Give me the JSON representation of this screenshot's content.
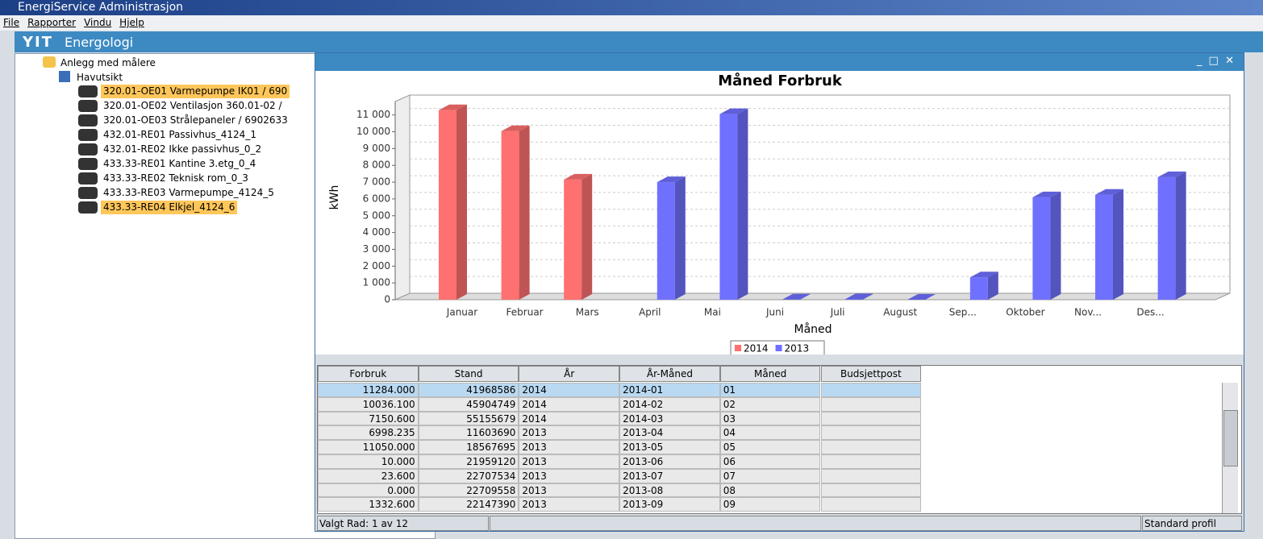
{
  "window_title": "EnergiService Administrasjon",
  "menu": [
    "File",
    "Rapporter",
    "Vindu",
    "Hjelp"
  ],
  "banner": {
    "logo": "YIT",
    "title": "Energologi"
  },
  "tree": {
    "root": "Anlegg med målere",
    "site": "Havutsikt",
    "items": [
      "320.01-OE01 Varmepumpe IK01 / 690",
      "320.01-OE02 Ventilasjon 360.01-02 /",
      "320.01-OE03 Strålepaneler / 6902633",
      "432.01-RE01 Passivhus_4124_1",
      "432.01-RE02 Ikke passivhus_0_2",
      "433.33-RE01 Kantine 3.etg_0_4",
      "433.33-RE02 Teknisk rom_0_3",
      "433.33-RE03 Varmepumpe_4124_5",
      "433.33-RE04 Elkjel_4124_6"
    ]
  },
  "chart_data": {
    "type": "bar",
    "title": "Måned  Forbruk",
    "x_label": "Måned",
    "y_label": "kWh",
    "categories": [
      "Januar",
      "Februar",
      "Mars",
      "April",
      "Mai",
      "Juni",
      "Juli",
      "August",
      "Sep...",
      "Oktober",
      "Nov...",
      "Des..."
    ],
    "series": [
      {
        "name": "2014",
        "color": "#ff7070",
        "values": [
          11284,
          10036.1,
          7150.6,
          null,
          null,
          null,
          null,
          null,
          null,
          null,
          null,
          null
        ]
      },
      {
        "name": "2013",
        "color": "#7070ff",
        "values": [
          null,
          null,
          null,
          6998.235,
          11050,
          10,
          23.6,
          0,
          1332.6,
          6100,
          6250,
          7300
        ]
      }
    ],
    "ylim": [
      0,
      11800
    ],
    "yticks": [
      0,
      {
        "value": 1000,
        "label": "1 000"
      },
      {
        "value": 2000,
        "label": "2 000"
      },
      {
        "value": 3000,
        "label": "3 000"
      },
      {
        "value": 4000,
        "label": "4 000"
      },
      {
        "value": 5000,
        "label": "5 000"
      },
      {
        "value": 6000,
        "label": "6 000"
      },
      {
        "value": 7000,
        "label": "7 000"
      },
      {
        "value": 8000,
        "label": "8 000"
      },
      {
        "value": 9000,
        "label": "9 000"
      },
      {
        "value": 10000,
        "label": "10 000"
      },
      {
        "value": 11000,
        "label": "11 000"
      }
    ],
    "grid": true
  },
  "table": {
    "headers": [
      "Forbruk",
      "Stand",
      "År",
      "År-Måned",
      "Måned",
      "Budsjettpost"
    ],
    "rows": [
      [
        "11284.000",
        "41968586",
        "2014",
        "2014-01",
        "01"
      ],
      [
        "10036.100",
        "45904749",
        "2014",
        "2014-02",
        "02"
      ],
      [
        "7150.600",
        "55155679",
        "2014",
        "2014-03",
        "03"
      ],
      [
        "6998.235",
        "11603690",
        "2013",
        "2013-04",
        "04"
      ],
      [
        "11050.000",
        "18567695",
        "2013",
        "2013-05",
        "05"
      ],
      [
        "10.000",
        "21959120",
        "2013",
        "2013-06",
        "06"
      ],
      [
        "23.600",
        "22707534",
        "2013",
        "2013-07",
        "07"
      ],
      [
        "0.000",
        "22709558",
        "2013",
        "2013-08",
        "08"
      ],
      [
        "1332.600",
        "22147390",
        "2013",
        "2013-09",
        "09"
      ]
    ]
  },
  "status": {
    "selection": "Valgt Rad: 1 av 12",
    "profile": "Standard profil"
  }
}
